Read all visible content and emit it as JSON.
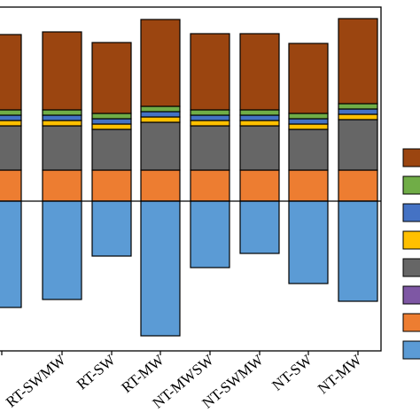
{
  "chart_data": {
    "type": "bar",
    "stacked": true,
    "diverging": true,
    "ylim": [
      -1.55,
      2.05
    ],
    "categories": [
      "",
      "RT-SWMW",
      "RT-SW",
      "RT-MW",
      "NT-MWSW",
      "NT-SWMW",
      "NT-SW",
      "NT-MW"
    ],
    "series": [
      {
        "key": "s_orange",
        "color": "#ED7D31",
        "values": [
          0.35,
          0.35,
          0.35,
          0.35,
          0.35,
          0.35,
          0.35,
          0.35
        ]
      },
      {
        "key": "s_purple",
        "color": "#7E57A4",
        "values": [
          0.0,
          0.0,
          0.0,
          0.0,
          0.0,
          0.0,
          0.0,
          0.0
        ]
      },
      {
        "key": "s_gray",
        "color": "#666666",
        "values": [
          0.5,
          0.5,
          0.46,
          0.54,
          0.5,
          0.5,
          0.46,
          0.57
        ]
      },
      {
        "key": "s_yellow",
        "color": "#FFC000",
        "values": [
          0.06,
          0.06,
          0.06,
          0.06,
          0.06,
          0.06,
          0.06,
          0.06
        ]
      },
      {
        "key": "s_blue",
        "color": "#4472C4",
        "values": [
          0.06,
          0.06,
          0.06,
          0.06,
          0.06,
          0.06,
          0.06,
          0.06
        ]
      },
      {
        "key": "s_green",
        "color": "#70AD47",
        "values": [
          0.06,
          0.06,
          0.06,
          0.06,
          0.06,
          0.06,
          0.06,
          0.06
        ]
      },
      {
        "key": "s_brown",
        "color": "#9B4510",
        "values": [
          0.85,
          0.88,
          0.8,
          0.98,
          0.86,
          0.86,
          0.79,
          0.96
        ]
      },
      {
        "key": "s_lightblue",
        "color": "#5B9BD5",
        "values": [
          -1.2,
          -1.11,
          -0.62,
          -1.52,
          -0.75,
          -0.59,
          -0.93,
          -1.13
        ]
      }
    ],
    "legend_position": "right",
    "grid": false
  }
}
